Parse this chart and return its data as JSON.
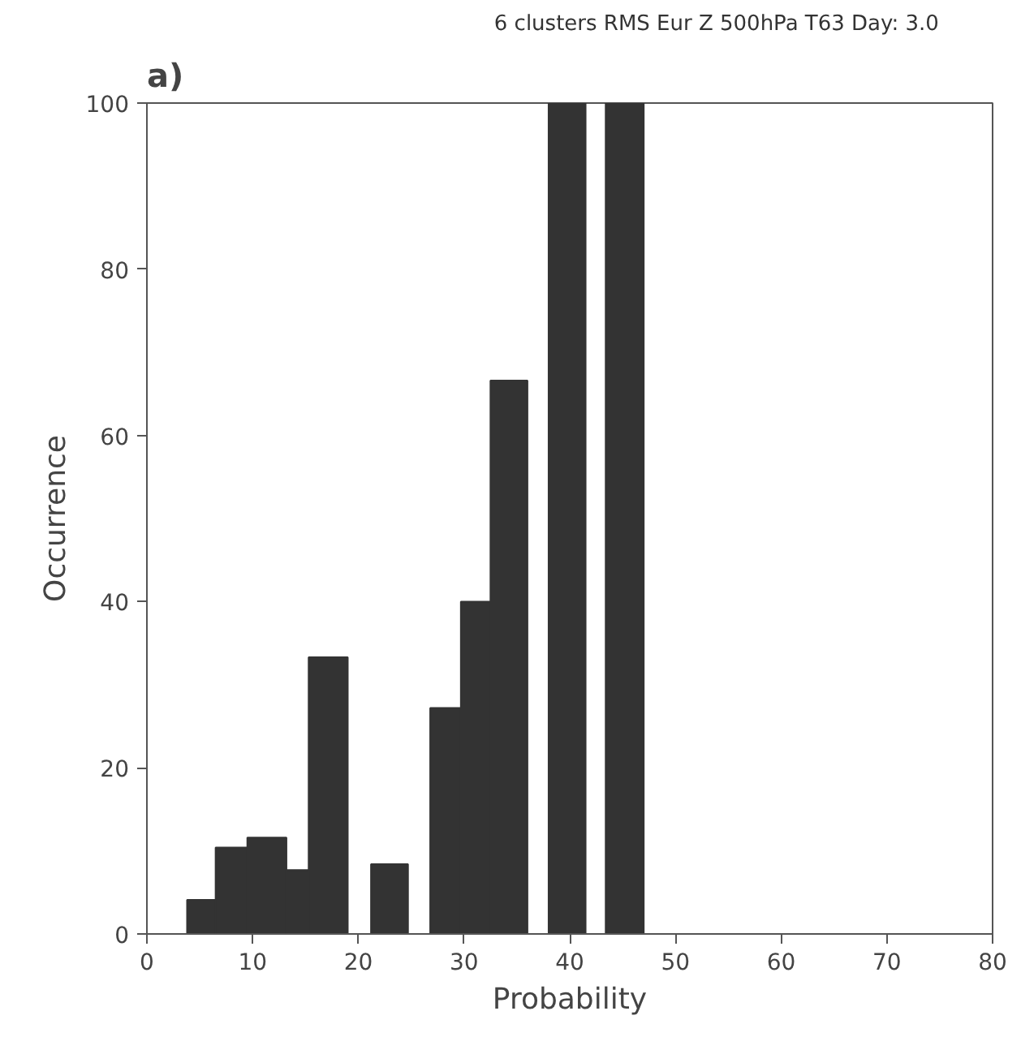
{
  "chart_data": {
    "type": "histogram",
    "title": "6 clusters RMS   Eur   Z 500hPa   T63   Day: 3.0",
    "annotations": [
      "a)"
    ],
    "xlabel": "Probability",
    "ylabel": "Occurrence",
    "bins": [
      3.8,
      6.5,
      9.5,
      13.2,
      15.3,
      19.0,
      21.2,
      24.7,
      26.8,
      29.7,
      32.5,
      36.0,
      38.0,
      41.5,
      43.4,
      47.0
    ],
    "values": [
      4.1,
      10.4,
      11.6,
      7.7,
      33.3,
      0,
      8.4,
      0,
      27.2,
      40,
      66.6,
      0,
      100,
      0,
      100
    ],
    "color": "#333333",
    "xlim": [
      0,
      80
    ],
    "ylim": [
      0,
      100
    ],
    "xticks": [
      0,
      10,
      20,
      30,
      40,
      50,
      60,
      70,
      80
    ],
    "yticks": [
      0,
      20,
      40,
      60,
      80,
      100
    ],
    "grid": false
  }
}
